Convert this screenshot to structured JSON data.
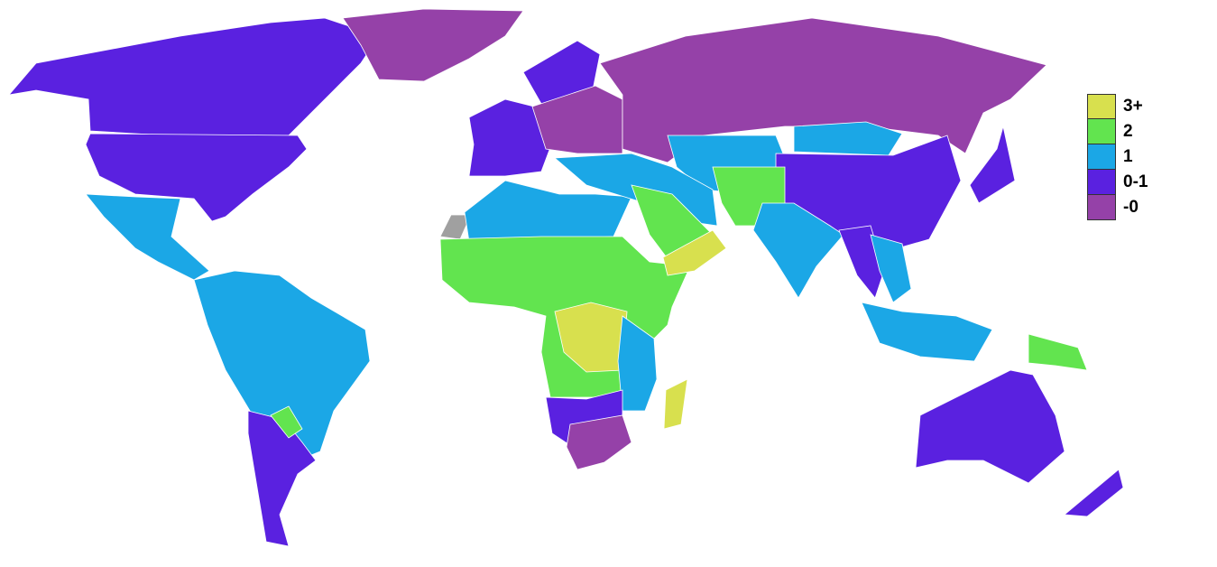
{
  "legend": [
    {
      "label": "3+",
      "color": "#d8e04e"
    },
    {
      "label": "2",
      "color": "#62e44f"
    },
    {
      "label": "1",
      "color": "#1ba7e6"
    },
    {
      "label": "0-1",
      "color": "#5a21e0"
    },
    {
      "label": "-0",
      "color": "#9541a8"
    }
  ],
  "no_data_color": "#a0a0a0",
  "regions": {
    "canada": "0-1",
    "usa": "0-1",
    "greenland": "-0",
    "mexico-central-america": "1",
    "south-america": "1",
    "southern-cone": "0-1",
    "paraguay": "2",
    "western-europe": "0-1",
    "scandinavia": "0-1",
    "eastern-europe": "-0",
    "russia": "-0",
    "central-asia": "1",
    "mongolia": "1",
    "china": "0-1",
    "japan": "0-1",
    "middle-east": "1",
    "arabia": "2",
    "yemen-oman": "3+",
    "pakistan-afghanistan": "2",
    "india": "1",
    "southeast-asia": "1",
    "indochina": "0-1",
    "indonesia": "1",
    "papua-new-guinea": "2",
    "australia": "0-1",
    "new-zealand": "0-1",
    "north-africa": "1",
    "west-central-africa": "2",
    "congo": "3+",
    "east-africa": "1",
    "namibia-botswana": "0-1",
    "south-africa": "-0",
    "madagascar": "3+",
    "western-sahara": "none"
  }
}
